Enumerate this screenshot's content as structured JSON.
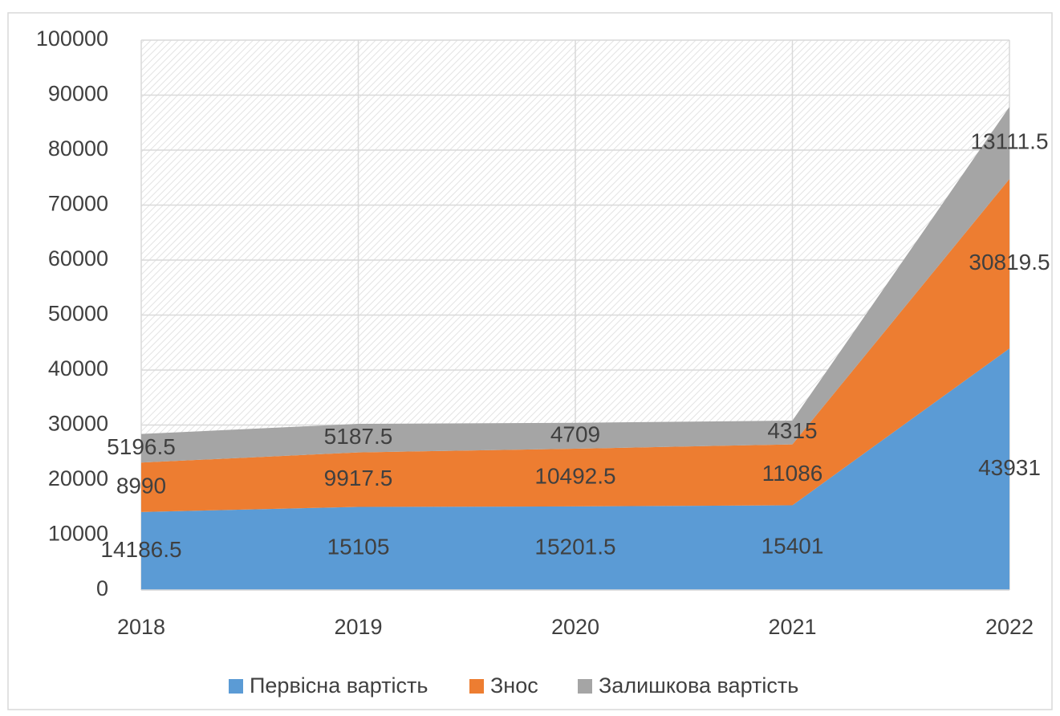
{
  "chart_data": {
    "type": "stacked_area",
    "categories": [
      "2018",
      "2019",
      "2020",
      "2021",
      "2022"
    ],
    "series": [
      {
        "name": "Первісна вартість",
        "color": "#5b9bd5",
        "values": [
          14186.5,
          15105,
          15201.5,
          15401,
          43931
        ]
      },
      {
        "name": "Знос",
        "color": "#ed7d31",
        "values": [
          8990,
          9917.5,
          10492.5,
          11086,
          30819.5
        ]
      },
      {
        "name": "Залишкова вартість",
        "color": "#a5a5a5",
        "values": [
          5196.5,
          5187.5,
          4709,
          4315,
          13111.5
        ]
      }
    ],
    "ylim": [
      0,
      100000
    ],
    "yticks": [
      0,
      10000,
      20000,
      30000,
      40000,
      50000,
      60000,
      70000,
      80000,
      90000,
      100000
    ],
    "grid": true,
    "legend": "bottom"
  }
}
